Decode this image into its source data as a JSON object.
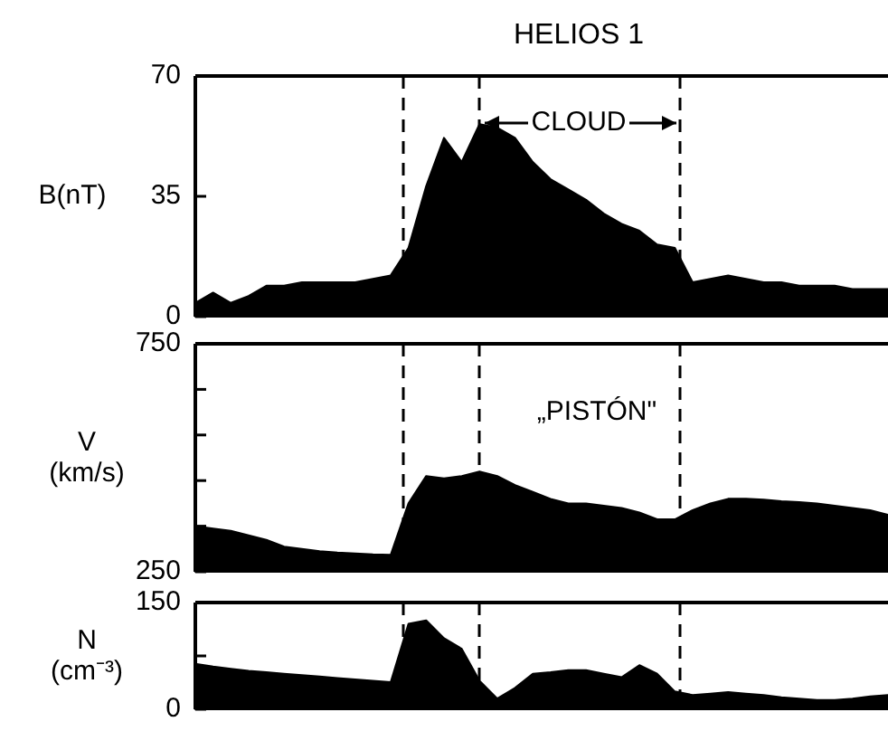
{
  "chart_data": [
    {
      "type": "area",
      "title": "HELIOS 1",
      "ylabel": "B(nT)",
      "categories": [
        null,
        null,
        null,
        null,
        null,
        null,
        null,
        null,
        null,
        null,
        null,
        null,
        null,
        null,
        null,
        null,
        null,
        null,
        null,
        null,
        null,
        null,
        null,
        null,
        null,
        null,
        null,
        null,
        null,
        null,
        null,
        null,
        null,
        null,
        null,
        null,
        null,
        null,
        null,
        null
      ],
      "series": [
        {
          "color": "#000000",
          "values": [
            4,
            7,
            4,
            6,
            9,
            9,
            10,
            10,
            10,
            10,
            11,
            12,
            20,
            38,
            52,
            45,
            56,
            55,
            52,
            45,
            40,
            37,
            34,
            30,
            27,
            25,
            21,
            20,
            10,
            11,
            12,
            11,
            10,
            10,
            9,
            9,
            9,
            8,
            8,
            8
          ]
        }
      ],
      "ylim": [
        0,
        70
      ],
      "yticks": [
        0,
        35,
        70
      ],
      "tick_labels": "y",
      "annotations": [
        "CLOUD"
      ]
    },
    {
      "type": "area",
      "ylabel": "V (km/s)",
      "categories": [
        null,
        null,
        null,
        null,
        null,
        null,
        null,
        null,
        null,
        null,
        null,
        null,
        null,
        null,
        null,
        null,
        null,
        null,
        null,
        null,
        null,
        null,
        null,
        null,
        null,
        null,
        null,
        null,
        null,
        null,
        null,
        null,
        null,
        null,
        null,
        null,
        null,
        null,
        null,
        null
      ],
      "series": [
        {
          "color": "#000000",
          "values": [
            350,
            345,
            340,
            330,
            320,
            305,
            300,
            295,
            292,
            290,
            288,
            287,
            400,
            460,
            455,
            460,
            470,
            460,
            440,
            425,
            410,
            400,
            400,
            395,
            390,
            380,
            365,
            365,
            385,
            400,
            410,
            410,
            408,
            405,
            403,
            400,
            395,
            390,
            385,
            375
          ]
        }
      ],
      "ylim": [
        250,
        750
      ],
      "yticks": [
        250,
        {
          "value": 350,
          "label": null
        },
        {
          "value": 450,
          "label": null
        },
        {
          "value": 550,
          "label": null
        },
        {
          "value": 650,
          "label": null
        },
        750
      ],
      "tick_labels": "y",
      "annotations": [
        "„PISTÓN\""
      ]
    },
    {
      "type": "area",
      "ylabel": "N (cm⁻³)",
      "categories": [
        null,
        null,
        null,
        null,
        null,
        null,
        null,
        null,
        null,
        null,
        null,
        null,
        null,
        null,
        null,
        null,
        null,
        null,
        null,
        null,
        null,
        null,
        null,
        null,
        null,
        null,
        null,
        null,
        null,
        null,
        null,
        null,
        null,
        null,
        null,
        null,
        null,
        null,
        null,
        null
      ],
      "series": [
        {
          "color": "#000000",
          "values": [
            64,
            60,
            57,
            54,
            52,
            50,
            48,
            46,
            44,
            42,
            40,
            38,
            120,
            125,
            100,
            85,
            40,
            15,
            30,
            50,
            52,
            55,
            55,
            50,
            45,
            62,
            50,
            25,
            20,
            22,
            24,
            22,
            20,
            17,
            15,
            13,
            13,
            15,
            18,
            20
          ]
        }
      ],
      "ylim": [
        0,
        150
      ],
      "yticks": [
        0,
        {
          "value": 75,
          "label": null
        },
        150
      ],
      "tick_labels": "y"
    }
  ]
}
